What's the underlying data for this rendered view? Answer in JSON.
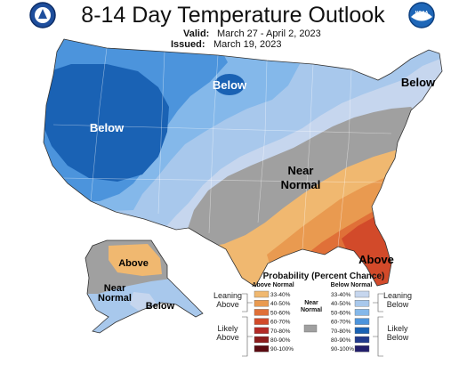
{
  "header": {
    "title": "8-14 Day Temperature Outlook",
    "valid_label": "Valid:",
    "valid_dates": "March 27 - April 2, 2023",
    "issued_label": "Issued:",
    "issued_date": "March 19, 2023",
    "left_logo_icon": "doc-seal-icon",
    "right_logo_icon": "noaa-logo-icon",
    "right_logo_text": "NOAA"
  },
  "map": {
    "labels": {
      "west_below": "Below",
      "north_below": "Below",
      "northeast_below": "Below",
      "near_normal_line1": "Near",
      "near_normal_line2": "Normal",
      "southeast_above": "Above",
      "alaska_above": "Above",
      "alaska_near_line1": "Near",
      "alaska_near_line2": "Normal",
      "alaska_below": "Below"
    }
  },
  "legend": {
    "title": "Probability (Percent Chance)",
    "above_header": "Above Normal",
    "below_header": "Below Normal",
    "near_line1": "Near",
    "near_line2": "Normal",
    "leaning_above_line1": "Leaning",
    "leaning_above_line2": "Above",
    "likely_above_line1": "Likely",
    "likely_above_line2": "Above",
    "leaning_below_line1": "Leaning",
    "leaning_below_line2": "Below",
    "likely_below_line1": "Likely",
    "likely_below_line2": "Below",
    "ranges": [
      "33-40%",
      "40-50%",
      "50-60%",
      "60-70%",
      "70-80%",
      "80-90%",
      "90-100%"
    ],
    "above_colors": [
      "#f0b870",
      "#e99a50",
      "#e07038",
      "#d24a2a",
      "#b42a26",
      "#8c1c1c",
      "#5a0a10"
    ],
    "below_colors": [
      "#c6d6ee",
      "#a8c8ec",
      "#84b8ea",
      "#4c94dc",
      "#1a62b4",
      "#213a8c",
      "#221e6a"
    ],
    "near_color": "#a0a0a0"
  },
  "colors": {
    "below_33": "#c6d6ee",
    "below_40": "#a8c8ec",
    "below_50": "#84b8ea",
    "below_60": "#4c94dc",
    "below_70": "#1a62b4",
    "near": "#a0a0a0",
    "above_33": "#f0b870",
    "above_40": "#e99a50",
    "above_50": "#e07038",
    "above_60": "#d24a2a"
  }
}
